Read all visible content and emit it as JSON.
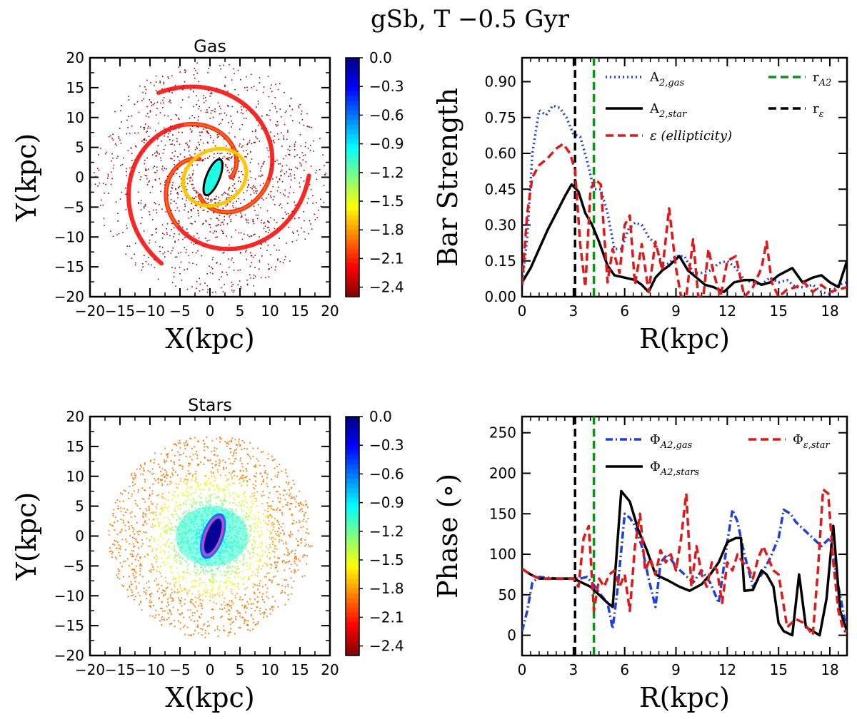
{
  "figure": {
    "title": "gSb, T −0.5 Gyr"
  },
  "chart_data": [
    {
      "id": "gas_map",
      "type": "heatmap",
      "title": "Gas",
      "xlabel": "X(kpc)",
      "ylabel": "Y(kpc)",
      "xlim": [
        -20,
        20
      ],
      "ylim": [
        -20,
        20
      ],
      "xticks": [
        -20,
        -15,
        -10,
        -5,
        0,
        5,
        10,
        15,
        20
      ],
      "yticks": [
        -20,
        -15,
        -10,
        -5,
        0,
        5,
        10,
        15,
        20
      ],
      "colorbar": {
        "range": [
          -2.5,
          0.0
        ],
        "ticks": [
          "0.0",
          "−0.3",
          "−0.6",
          "−0.9",
          "−1.2",
          "−1.5",
          "−1.8",
          "−2.1",
          "−2.4"
        ],
        "tick_values": [
          0.0,
          -0.3,
          -0.6,
          -0.9,
          -1.2,
          -1.5,
          -1.8,
          -2.1,
          -2.4
        ],
        "colormap": "jet_r"
      },
      "bar_ellipse": {
        "center": [
          0.5,
          0.0
        ],
        "semi_major_kpc": 3.2,
        "semi_minor_kpc": 1.1,
        "angle_deg": 68,
        "color": "#000000"
      }
    },
    {
      "id": "bar_strength",
      "type": "line",
      "xlabel": "R(kpc)",
      "ylabel": "Bar Strength",
      "xlim": [
        0,
        19
      ],
      "ylim": [
        0,
        1.0
      ],
      "xticks": [
        0,
        3,
        6,
        9,
        12,
        15,
        18
      ],
      "yticks": [
        0.0,
        0.15,
        0.3,
        0.45,
        0.6,
        0.75,
        0.9
      ],
      "ytick_labels": [
        "0.00",
        "0.15",
        "0.30",
        "0.45",
        "0.60",
        "0.75",
        "0.90"
      ],
      "series": [
        {
          "name": "A_{2,gas}",
          "style": "dotted",
          "color": "#1f3fe0",
          "x": [
            0,
            0.3,
            0.6,
            1,
            1.4,
            1.8,
            2.2,
            2.6,
            3,
            3.4,
            3.8,
            4.2,
            4.6,
            5,
            5.4,
            5.8,
            6.2,
            6.6,
            7,
            7.4,
            7.8,
            8.2,
            8.6,
            9,
            9.5,
            10,
            10.5,
            11,
            11.5,
            12,
            12.5,
            13,
            13.5,
            14,
            14.5,
            15,
            15.5,
            16,
            16.5,
            17,
            17.5,
            18,
            18.5,
            19
          ],
          "y": [
            0.05,
            0.25,
            0.6,
            0.78,
            0.76,
            0.8,
            0.79,
            0.75,
            0.68,
            0.67,
            0.57,
            0.45,
            0.45,
            0.35,
            0.2,
            0.2,
            0.28,
            0.31,
            0.3,
            0.25,
            0.22,
            0.13,
            0.14,
            0.17,
            0.17,
            0.1,
            0.1,
            0.11,
            0.14,
            0.15,
            0.12,
            0.07,
            0.06,
            0.05,
            0.08,
            0.06,
            0.07,
            0.04,
            0.04,
            0.05,
            0.02,
            0.01,
            0.05,
            0.06
          ]
        },
        {
          "name": "A_{2,star}",
          "style": "solid",
          "color": "#000000",
          "x": [
            0,
            0.5,
            1,
            1.5,
            2,
            2.5,
            2.9,
            3.3,
            3.7,
            4.1,
            4.5,
            5,
            5.4,
            6,
            6.6,
            7,
            7.4,
            7.8,
            8.2,
            8.6,
            9.2,
            9.7,
            10.2,
            10.7,
            11.2,
            11.8,
            12.4,
            13,
            13.5,
            14,
            14.5,
            15,
            15.8,
            16.4,
            17,
            17.5,
            18,
            18.5,
            19
          ],
          "y": [
            0.06,
            0.12,
            0.2,
            0.28,
            0.35,
            0.42,
            0.47,
            0.44,
            0.35,
            0.3,
            0.23,
            0.13,
            0.09,
            0.08,
            0.07,
            0.05,
            0.02,
            0.08,
            0.11,
            0.13,
            0.17,
            0.11,
            0.08,
            0.05,
            0.04,
            0.02,
            0.06,
            0.07,
            0.07,
            0.05,
            0.06,
            0.09,
            0.12,
            0.06,
            0.08,
            0.09,
            0.06,
            0.04,
            0.15
          ]
        },
        {
          "name": "ε (ellipticity)",
          "style": "dashed",
          "color": "#e01818",
          "x": [
            0,
            0.3,
            0.6,
            1,
            1.5,
            2,
            2.4,
            2.8,
            3.1,
            3.4,
            3.7,
            4,
            4.3,
            4.6,
            5,
            5.3,
            5.7,
            6,
            6.3,
            6.6,
            7,
            7.4,
            7.8,
            8.2,
            8.6,
            9,
            9.3,
            9.6,
            10,
            10.3,
            10.6,
            10.9,
            11.2,
            11.6,
            12,
            12.5,
            13,
            13.5,
            14,
            14.3,
            14.6,
            15,
            15.5,
            16,
            16.5,
            17,
            17.5,
            18,
            18.5,
            19
          ],
          "y": [
            0.05,
            0.35,
            0.5,
            0.55,
            0.58,
            0.62,
            0.64,
            0.6,
            0.53,
            0.22,
            0.04,
            0.45,
            0.49,
            0.47,
            0.06,
            0.2,
            0.1,
            0.3,
            0.34,
            0.05,
            0.22,
            0.02,
            0.23,
            0.11,
            0.37,
            0.12,
            0.0,
            0.0,
            0.24,
            0.0,
            0.0,
            0.2,
            0.1,
            0.0,
            0.15,
            0.17,
            0.0,
            0.04,
            0.12,
            0.23,
            0.06,
            0.0,
            0.03,
            0.04,
            0.06,
            0.02,
            0.05,
            0.02,
            0.03,
            0.04
          ]
        }
      ],
      "vlines": [
        {
          "name": "r_{A2}",
          "x": 4.2,
          "style": "dashed",
          "color": "#10901a"
        },
        {
          "name": "r_ε",
          "x": 3.1,
          "style": "dashed",
          "color": "#000000"
        }
      ],
      "legend": [
        {
          "label": "A",
          "sub": "2,gas",
          "style": "dotted",
          "color": "#1f3fe0"
        },
        {
          "label": "A",
          "sub": "2,star",
          "style": "solid",
          "color": "#000000"
        },
        {
          "label": "ε (ellipticity)",
          "sub": "",
          "style": "dashed",
          "color": "#e01818"
        },
        {
          "label": "r",
          "sub": "A2",
          "style": "dashed",
          "color": "#10901a"
        },
        {
          "label": "r",
          "sub": "ε",
          "style": "dashed",
          "color": "#000000"
        }
      ]
    },
    {
      "id": "stars_map",
      "type": "heatmap",
      "title": "Stars",
      "xlabel": "X(kpc)",
      "ylabel": "Y(kpc)",
      "xlim": [
        -20,
        20
      ],
      "ylim": [
        -20,
        20
      ],
      "xticks": [
        -20,
        -15,
        -10,
        -5,
        0,
        5,
        10,
        15,
        20
      ],
      "yticks": [
        -20,
        -15,
        -10,
        -5,
        0,
        5,
        10,
        15,
        20
      ],
      "colorbar": {
        "range": [
          -2.5,
          0.0
        ],
        "ticks": [
          "0.0",
          "−0.3",
          "−0.6",
          "−0.9",
          "−1.2",
          "−1.5",
          "−1.8",
          "−2.1",
          "−2.4"
        ],
        "tick_values": [
          0.0,
          -0.3,
          -0.6,
          -0.9,
          -1.2,
          -1.5,
          -1.8,
          -2.1,
          -2.4
        ],
        "colormap": "jet_r"
      },
      "bar_ellipse": {
        "center": [
          0.5,
          0.0
        ],
        "semi_major_kpc": 3.4,
        "semi_minor_kpc": 1.3,
        "angle_deg": 70,
        "color": "#e040c0"
      }
    },
    {
      "id": "phase",
      "type": "line",
      "xlabel": "R(kpc)",
      "ylabel": "Phase (∘)",
      "xlim": [
        0,
        19
      ],
      "ylim": [
        -25,
        270
      ],
      "xticks": [
        0,
        3,
        6,
        9,
        12,
        15,
        18
      ],
      "yticks": [
        0,
        50,
        100,
        150,
        200,
        250
      ],
      "series": [
        {
          "name": "Φ_{A2,gas}",
          "style": "dashdot",
          "color": "#1f3fe0",
          "x": [
            0,
            0.3,
            0.6,
            1,
            2,
            3,
            3.4,
            3.8,
            4.2,
            4.6,
            5,
            5.3,
            5.6,
            6,
            6.3,
            6.6,
            7,
            7.4,
            7.8,
            8.1,
            8.5,
            9,
            9.5,
            10,
            10.5,
            11,
            11.5,
            12,
            12.3,
            12.6,
            13,
            13.5,
            14,
            14.5,
            15,
            15.3,
            15.7,
            16,
            16.5,
            17,
            17.5,
            18,
            18.5,
            19
          ],
          "y": [
            5,
            30,
            65,
            72,
            70,
            70,
            70,
            72,
            62,
            50,
            40,
            8,
            60,
            150,
            145,
            135,
            110,
            70,
            35,
            90,
            100,
            85,
            75,
            65,
            80,
            65,
            40,
            115,
            155,
            140,
            100,
            60,
            75,
            95,
            120,
            155,
            150,
            140,
            130,
            120,
            110,
            120,
            60,
            5
          ]
        },
        {
          "name": "Φ_{A2,stars}",
          "style": "solid",
          "color": "#000000",
          "x": [
            0,
            0.5,
            1,
            2,
            3,
            3.5,
            4,
            4.5,
            5,
            5.3,
            5.8,
            6.3,
            6.8,
            7.3,
            7.8,
            8.5,
            9.2,
            9.8,
            10.5,
            11,
            11.5,
            12,
            12.5,
            12.8,
            13,
            13.5,
            14,
            14.3,
            14.7,
            15,
            15.3,
            15.8,
            16.2,
            16.6,
            17,
            17.4,
            17.8,
            18.2,
            18.6,
            19
          ],
          "y": [
            82,
            75,
            70,
            70,
            70,
            65,
            60,
            50,
            40,
            35,
            178,
            165,
            130,
            105,
            75,
            68,
            60,
            55,
            63,
            75,
            90,
            115,
            120,
            120,
            55,
            56,
            80,
            75,
            60,
            15,
            5,
            0,
            75,
            10,
            5,
            0,
            45,
            135,
            30,
            5
          ]
        },
        {
          "name": "Φ_{ε,star}",
          "style": "dashed",
          "color": "#e01818",
          "x": [
            0,
            0.5,
            1,
            2,
            3,
            3.3,
            3.6,
            3.9,
            4.2,
            4.5,
            4.8,
            5.1,
            5.4,
            5.7,
            6,
            6.3,
            6.6,
            6.9,
            7.2,
            7.5,
            7.8,
            8.1,
            8.4,
            8.7,
            9,
            9.3,
            9.6,
            9.9,
            10.2,
            10.5,
            10.8,
            11.1,
            11.4,
            11.7,
            12,
            12.3,
            12.6,
            12.9,
            13.2,
            13.5,
            13.8,
            14.1,
            14.4,
            14.7,
            15,
            15.5,
            16,
            16.5,
            17,
            17.3,
            17.6,
            17.9,
            18.2,
            18.5,
            18.8,
            19
          ],
          "y": [
            82,
            75,
            70,
            70,
            70,
            60,
            120,
            135,
            30,
            70,
            60,
            75,
            80,
            60,
            75,
            30,
            110,
            150,
            80,
            95,
            75,
            105,
            90,
            100,
            80,
            120,
            175,
            60,
            110,
            75,
            60,
            90,
            80,
            40,
            90,
            80,
            100,
            90,
            85,
            70,
            95,
            110,
            95,
            80,
            75,
            10,
            20,
            15,
            0,
            80,
            180,
            175,
            90,
            30,
            5,
            5
          ]
        }
      ],
      "vlines": [
        {
          "name": "r_{A2}",
          "x": 4.2,
          "style": "dashed",
          "color": "#10901a"
        },
        {
          "name": "r_ε",
          "x": 3.1,
          "style": "dashed",
          "color": "#000000"
        }
      ],
      "legend": [
        {
          "label": "Φ",
          "sub": "A2,gas",
          "style": "dashdot",
          "color": "#1f3fe0"
        },
        {
          "label": "Φ",
          "sub": "A2,stars",
          "style": "solid",
          "color": "#000000"
        },
        {
          "label": "Φ",
          "sub": "ε,star",
          "style": "dashed",
          "color": "#e01818"
        }
      ]
    }
  ]
}
